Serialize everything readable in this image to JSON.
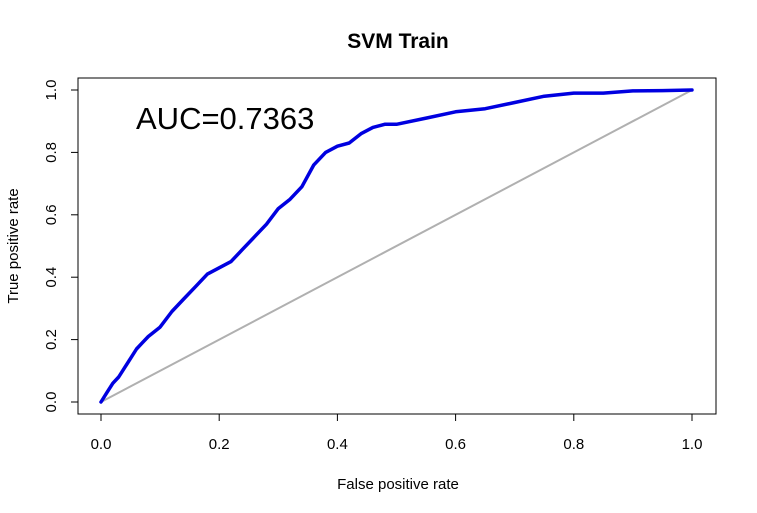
{
  "chart_data": {
    "type": "line",
    "title": "SVM Train",
    "xlabel": "False positive rate",
    "ylabel": "True positive rate",
    "xlim": [
      0,
      1
    ],
    "ylim": [
      0,
      1
    ],
    "x_ticks": [
      "0.0",
      "0.2",
      "0.4",
      "0.6",
      "0.8",
      "1.0"
    ],
    "y_ticks": [
      "0.0",
      "0.2",
      "0.4",
      "0.6",
      "0.8",
      "1.0"
    ],
    "annotation": "AUC=0.7363",
    "grid": false,
    "series": [
      {
        "color": "#0000e0",
        "x": [
          0.0,
          0.01,
          0.02,
          0.03,
          0.04,
          0.05,
          0.06,
          0.07,
          0.08,
          0.1,
          0.12,
          0.14,
          0.16,
          0.18,
          0.2,
          0.22,
          0.24,
          0.26,
          0.28,
          0.3,
          0.32,
          0.34,
          0.36,
          0.38,
          0.4,
          0.42,
          0.44,
          0.46,
          0.48,
          0.5,
          0.55,
          0.6,
          0.65,
          0.7,
          0.75,
          0.8,
          0.85,
          0.9,
          0.95,
          1.0
        ],
        "y": [
          0.0,
          0.03,
          0.06,
          0.08,
          0.11,
          0.14,
          0.17,
          0.19,
          0.21,
          0.24,
          0.29,
          0.33,
          0.37,
          0.41,
          0.43,
          0.45,
          0.49,
          0.53,
          0.57,
          0.62,
          0.65,
          0.69,
          0.76,
          0.8,
          0.82,
          0.83,
          0.86,
          0.88,
          0.89,
          0.89,
          0.91,
          0.93,
          0.94,
          0.96,
          0.98,
          0.99,
          0.99,
          0.997,
          0.998,
          1.0
        ]
      },
      {
        "color": "#b0b0b0",
        "x": [
          0,
          1
        ],
        "y": [
          0,
          1
        ]
      }
    ]
  }
}
